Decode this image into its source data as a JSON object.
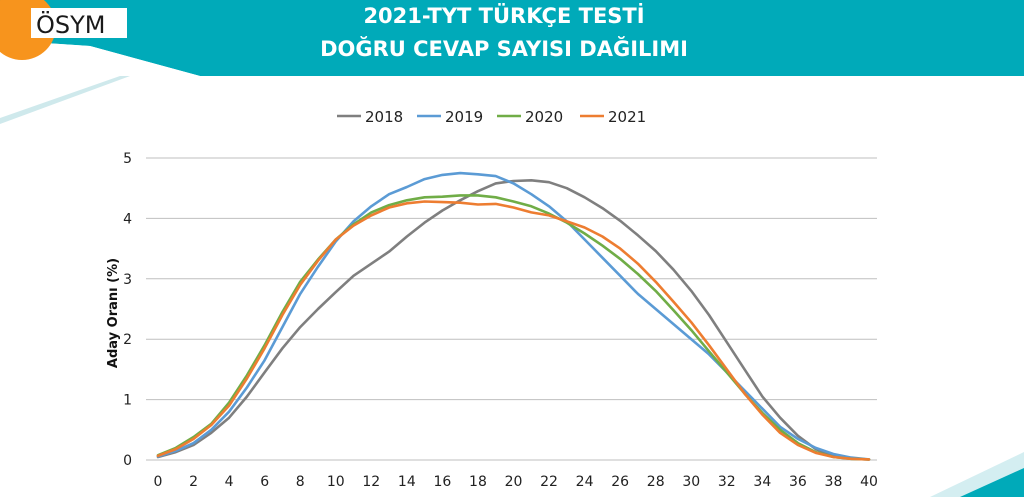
{
  "header": {
    "logo_text": "ÖSYM",
    "title_line1": "2021-TYT TÜRKÇE TESTİ",
    "title_line2": "DOĞRU CEVAP SAYISI DAĞILIMI",
    "colors": {
      "banner": "#00aab9",
      "logo_circle": "#f7941d"
    }
  },
  "chart_data": {
    "type": "line",
    "title": "",
    "xlabel": "",
    "ylabel": "Aday Oranı (%)",
    "xlim": [
      0,
      40
    ],
    "ylim": [
      0,
      5
    ],
    "x_ticks": [
      0,
      2,
      4,
      6,
      8,
      10,
      12,
      14,
      16,
      18,
      20,
      22,
      24,
      26,
      28,
      30,
      32,
      34,
      36,
      38,
      40
    ],
    "y_ticks": [
      0,
      1,
      2,
      3,
      4,
      5
    ],
    "grid": "horizontal",
    "legend_position": "top-center",
    "x": [
      0,
      1,
      2,
      3,
      4,
      5,
      6,
      7,
      8,
      9,
      10,
      11,
      12,
      13,
      14,
      15,
      16,
      17,
      18,
      19,
      20,
      21,
      22,
      23,
      24,
      25,
      26,
      27,
      28,
      29,
      30,
      31,
      32,
      33,
      34,
      35,
      36,
      37,
      38,
      39,
      40
    ],
    "series": [
      {
        "name": "2018",
        "color": "#7f7f7f",
        "values": [
          0.05,
          0.13,
          0.25,
          0.45,
          0.7,
          1.05,
          1.45,
          1.85,
          2.2,
          2.5,
          2.78,
          3.05,
          3.25,
          3.45,
          3.7,
          3.93,
          4.13,
          4.3,
          4.45,
          4.58,
          4.62,
          4.63,
          4.6,
          4.5,
          4.35,
          4.17,
          3.96,
          3.72,
          3.46,
          3.15,
          2.8,
          2.4,
          1.95,
          1.5,
          1.05,
          0.7,
          0.4,
          0.18,
          0.07,
          0.02,
          0.01
        ]
      },
      {
        "name": "2019",
        "color": "#5b9bd5",
        "values": [
          0.06,
          0.15,
          0.28,
          0.5,
          0.8,
          1.2,
          1.65,
          2.2,
          2.75,
          3.2,
          3.62,
          3.95,
          4.2,
          4.4,
          4.52,
          4.65,
          4.72,
          4.75,
          4.73,
          4.7,
          4.58,
          4.4,
          4.2,
          3.95,
          3.65,
          3.35,
          3.05,
          2.75,
          2.5,
          2.25,
          2.0,
          1.75,
          1.45,
          1.15,
          0.85,
          0.55,
          0.35,
          0.2,
          0.1,
          0.04,
          0.01
        ]
      },
      {
        "name": "2020",
        "color": "#70ad47",
        "values": [
          0.08,
          0.2,
          0.38,
          0.6,
          0.95,
          1.4,
          1.9,
          2.45,
          2.95,
          3.32,
          3.65,
          3.9,
          4.1,
          4.22,
          4.3,
          4.35,
          4.36,
          4.38,
          4.38,
          4.35,
          4.28,
          4.2,
          4.08,
          3.93,
          3.75,
          3.55,
          3.33,
          3.08,
          2.8,
          2.48,
          2.15,
          1.8,
          1.45,
          1.1,
          0.78,
          0.5,
          0.28,
          0.13,
          0.05,
          0.02,
          0.01
        ]
      },
      {
        "name": "2021",
        "color": "#ed7d31",
        "values": [
          0.07,
          0.18,
          0.35,
          0.58,
          0.9,
          1.35,
          1.85,
          2.4,
          2.9,
          3.3,
          3.65,
          3.88,
          4.05,
          4.18,
          4.25,
          4.28,
          4.27,
          4.26,
          4.23,
          4.24,
          4.18,
          4.1,
          4.05,
          3.95,
          3.85,
          3.7,
          3.5,
          3.25,
          2.95,
          2.62,
          2.28,
          1.9,
          1.5,
          1.1,
          0.75,
          0.45,
          0.25,
          0.12,
          0.05,
          0.02,
          0.01
        ]
      }
    ]
  }
}
